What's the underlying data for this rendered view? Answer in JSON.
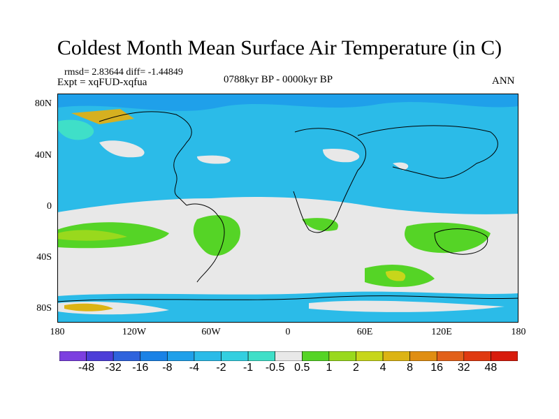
{
  "title": "Coldest Month Mean Surface Air Temperature (in C)",
  "stats": "rmsd= 2.83644  diff= -1.44849",
  "experiment": "Expt = xqFUD-xqfua",
  "period": "0788kyr BP - 0000kyr BP",
  "season": "ANN",
  "axes": {
    "y_ticks": [
      "80N",
      "40N",
      "0",
      "40S",
      "80S"
    ],
    "x_ticks": [
      "180",
      "120W",
      "60W",
      "0",
      "60E",
      "120E",
      "180"
    ]
  },
  "colorbar": {
    "labels": [
      "-48",
      "-32",
      "-16",
      "-8",
      "-4",
      "-2",
      "-1",
      "-0.5",
      "0.5",
      "1",
      "2",
      "4",
      "8",
      "16",
      "32",
      "48"
    ],
    "colors": [
      "#7c3fe0",
      "#4d3ed8",
      "#2f63dd",
      "#1a82e6",
      "#1fa0ea",
      "#2bbbe8",
      "#33cfe0",
      "#3fdfc8",
      "#e8e8e8",
      "#55d426",
      "#99d91d",
      "#c7d61b",
      "#dcb414",
      "#e08e12",
      "#e2611a",
      "#e03a10",
      "#d81c0c"
    ]
  },
  "legend_colors": {
    "land_outline": "#000000",
    "frame": "#000000"
  }
}
